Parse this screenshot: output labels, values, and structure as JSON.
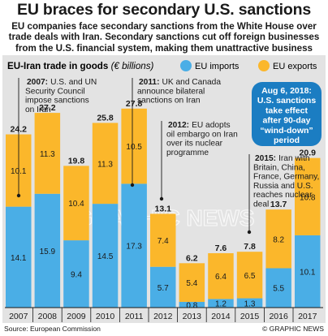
{
  "headline": "EU braces for secondary U.S. sanctions",
  "standfirst": "EU companies face secondary sanctions from the White House over trade deals with Iran. Secondary sanctions cut off foreign businesses from the U.S. financial system, making them unattractive business partners",
  "source": "Source: European Commission",
  "credit": "© GRAPHIC NEWS",
  "watermark": "GRAPHIC NEWS",
  "colors": {
    "imports": "#4aaee6",
    "exports": "#fbb72b",
    "panel": "#e3e3e3",
    "badge": "#1b7dc2",
    "text": "#1a1a1a"
  },
  "callout": {
    "lines": [
      "Aug 6, 2018:",
      "U.S. sanctions",
      "take effect",
      "after 90-day",
      "“wind-down”",
      "period"
    ]
  },
  "annotations": [
    {
      "year": "2007",
      "year_label": "2007:",
      "lines": [
        "U.S. and UN",
        "Security Council",
        "impose sanctions",
        "on Iran"
      ]
    },
    {
      "year": "2011",
      "year_label": "2011:",
      "lines": [
        "UK and Canada",
        "announce bilateral",
        "sanctions on Iran"
      ]
    },
    {
      "year": "2012",
      "year_label": "2012:",
      "lines": [
        "EU adopts",
        "oil embargo on Iran",
        "over its nuclear",
        "programme"
      ]
    },
    {
      "year": "2015",
      "year_label": "2015:",
      "lines": [
        "Iran with",
        "Britain, China,",
        "France, Germany,",
        "Russia and U.S.",
        "reaches nuclear",
        "deal"
      ]
    }
  ],
  "chart_data": {
    "type": "bar",
    "stacked": true,
    "title": "EU-Iran trade in goods",
    "title_unit": "(€ billions)",
    "legend_position": "top-right",
    "grid": false,
    "categories": [
      "2007",
      "2008",
      "2009",
      "2010",
      "2011",
      "2012",
      "2013",
      "2014",
      "2015",
      "2016",
      "2017"
    ],
    "series": [
      {
        "name": "EU imports",
        "values": [
          14.1,
          15.9,
          9.4,
          14.5,
          17.3,
          5.7,
          0.8,
          1.2,
          1.3,
          5.5,
          10.1
        ],
        "labels": [
          "14.1",
          "15.9",
          "9.4",
          "14.5",
          "17.3",
          "5.7",
          "0.8",
          "1.2",
          "1.3",
          "5.5",
          "10.1"
        ]
      },
      {
        "name": "EU exports",
        "values": [
          10.1,
          11.3,
          10.4,
          11.3,
          10.5,
          7.4,
          5.4,
          6.4,
          6.5,
          8.2,
          10.8
        ],
        "labels": [
          "10.1",
          "11.3",
          "10.4",
          "11.3",
          "10.5",
          "7.4",
          "5.4",
          "6.4",
          "6.5",
          "8.2",
          "10.8"
        ]
      }
    ],
    "totals": [
      24.2,
      27.2,
      19.8,
      25.8,
      27.8,
      13.1,
      6.2,
      7.6,
      7.8,
      13.7,
      20.9
    ],
    "total_labels": [
      "24.2",
      "27.2",
      "19.8",
      "25.8",
      "27.8",
      "13.1",
      "6.2",
      "7.6",
      "7.8",
      "13.7",
      "20.9"
    ],
    "ylim": [
      0,
      30
    ]
  }
}
